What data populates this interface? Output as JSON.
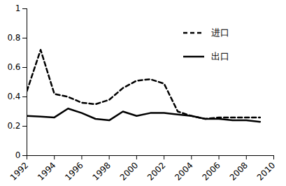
{
  "chart_data": {
    "type": "line",
    "x": [
      1992,
      1993,
      1994,
      1995,
      1996,
      1997,
      1998,
      1999,
      2000,
      2001,
      2002,
      2003,
      2004,
      2005,
      2006,
      2007,
      2008,
      2009
    ],
    "series": [
      {
        "name": "进口",
        "color": "#000000",
        "line_style": "dashed",
        "values": [
          0.44,
          0.72,
          0.42,
          0.4,
          0.36,
          0.35,
          0.38,
          0.46,
          0.51,
          0.52,
          0.49,
          0.3,
          0.27,
          0.25,
          0.26,
          0.26,
          0.26,
          0.26
        ]
      },
      {
        "name": "出口",
        "color": "#000000",
        "line_style": "solid",
        "values": [
          0.27,
          0.265,
          0.26,
          0.32,
          0.29,
          0.25,
          0.24,
          0.3,
          0.27,
          0.29,
          0.29,
          0.28,
          0.27,
          0.25,
          0.25,
          0.24,
          0.24,
          0.23
        ]
      }
    ],
    "xlim": [
      1992,
      2010
    ],
    "xticks": [
      1992,
      1994,
      1996,
      1998,
      2000,
      2002,
      2004,
      2006,
      2008,
      2010
    ],
    "ylim": [
      0,
      1
    ],
    "yticks": [
      0,
      0.2,
      0.4,
      0.6,
      0.8,
      1
    ],
    "grid": false,
    "legend": "top-right"
  }
}
